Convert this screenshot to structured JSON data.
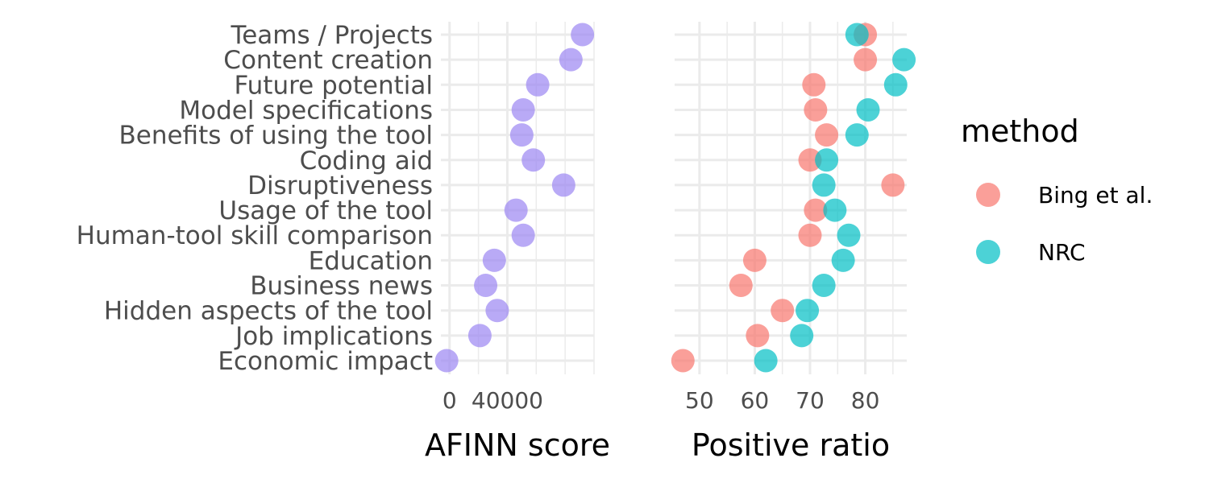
{
  "chart_data": [
    {
      "type": "scatter",
      "title": "",
      "xlabel": "AFINN score",
      "ylabel": "",
      "xlim": [
        -6000,
        100000
      ],
      "xticks": [
        0,
        40000
      ],
      "grid": true,
      "point_color": "#9b86f2",
      "categories": [
        "Teams / Projects",
        "Content creation",
        "Future potential",
        "Model specifications",
        "Benefits of using the tool",
        "Coding aid",
        "Disruptiveness",
        "Usage of the tool",
        "Human-tool skill comparison",
        "Education",
        "Business news",
        "Hidden aspects of the tool",
        "Job implications",
        "Economic impact"
      ],
      "series": [
        {
          "values": [
            92000,
            84000,
            61000,
            51000,
            50000,
            58000,
            79000,
            46000,
            51000,
            31000,
            25000,
            33000,
            21000,
            -2000
          ]
        }
      ]
    },
    {
      "type": "scatter",
      "title": "",
      "xlabel": "Positive ratio",
      "ylabel": "",
      "xlim": [
        45.5,
        87.5
      ],
      "xticks": [
        50,
        60,
        70,
        80
      ],
      "grid": true,
      "legend": {
        "title": "method",
        "placement": "right"
      },
      "categories": [
        "Teams / Projects",
        "Content creation",
        "Future potential",
        "Model specifications",
        "Benefits of using the tool",
        "Coding aid",
        "Disruptiveness",
        "Usage of the tool",
        "Human-tool skill comparison",
        "Education",
        "Business news",
        "Hidden aspects of the tool",
        "Job implications",
        "Economic impact"
      ],
      "series": [
        {
          "name": "Bing et al.",
          "color": "#f8766d",
          "values": [
            80.0,
            80.0,
            70.7,
            71.0,
            73.0,
            70.0,
            85.0,
            71.0,
            70.0,
            60.0,
            57.5,
            65.0,
            60.5,
            47.0
          ]
        },
        {
          "name": "NRC",
          "color": "#00bfc4",
          "values": [
            78.5,
            87.0,
            85.5,
            80.5,
            78.5,
            73.0,
            72.5,
            74.5,
            77.0,
            76.0,
            72.5,
            69.5,
            68.5,
            62.0
          ]
        }
      ]
    }
  ]
}
